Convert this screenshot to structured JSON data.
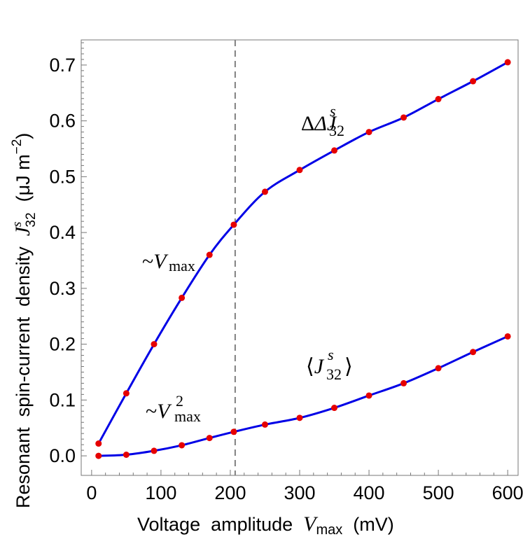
{
  "chart_data": {
    "type": "line",
    "xlabel": {
      "prefix": "Voltage  amplitude  ",
      "var": "V",
      "var_sub": "max",
      "unit": "  (mV)"
    },
    "ylabel": {
      "prefix": "Resonant  spin-current  density  ",
      "var": "J",
      "var_sup": "s",
      "var_sub": "32",
      "unit_pre": "  (μJ m",
      "unit_sup": "−2",
      "unit_post": ")"
    },
    "xlim": [
      -15,
      615
    ],
    "ylim": [
      -0.035,
      0.745
    ],
    "xticks": [
      0,
      100,
      200,
      300,
      400,
      500,
      600
    ],
    "xtick_labels": [
      "0",
      "100",
      "200",
      "300",
      "400",
      "500",
      "600"
    ],
    "yticks": [
      0.0,
      0.1,
      0.2,
      0.3,
      0.4,
      0.5,
      0.6,
      0.7
    ],
    "ytick_labels": [
      "0.0",
      "0.1",
      "0.2",
      "0.3",
      "0.4",
      "0.5",
      "0.6",
      "0.7"
    ],
    "grid": false,
    "vline": {
      "x": 207,
      "style": "dashed",
      "color": "#808080"
    },
    "line_color": "#0000e6",
    "marker_color": "#e60000",
    "series": [
      {
        "id": "delta",
        "x": [
          10,
          50,
          90,
          130,
          170,
          205,
          250,
          300,
          350,
          400,
          450,
          500,
          550,
          600
        ],
        "y": [
          0.022,
          0.112,
          0.2,
          0.283,
          0.36,
          0.414,
          0.473,
          0.512,
          0.547,
          0.58,
          0.606,
          0.639,
          0.671,
          0.705
        ]
      },
      {
        "id": "mean",
        "x": [
          10,
          50,
          90,
          130,
          170,
          205,
          250,
          300,
          350,
          400,
          450,
          500,
          550,
          600
        ],
        "y": [
          0.0,
          0.002,
          0.009,
          0.019,
          0.032,
          0.043,
          0.056,
          0.068,
          0.086,
          0.108,
          0.13,
          0.157,
          0.186,
          0.214
        ]
      }
    ],
    "annotations": {
      "delta_label": {
        "text": "ΔJ",
        "sup": "s",
        "sub": "32"
      },
      "mean_label": {
        "open": "⟨J",
        "sup": "s",
        "sub": "32",
        "close": "⟩"
      },
      "linear_label": {
        "text": "~V",
        "sub": "max"
      },
      "quadratic_label": {
        "text": "~V",
        "sup": "2",
        "sub": "max"
      }
    }
  }
}
